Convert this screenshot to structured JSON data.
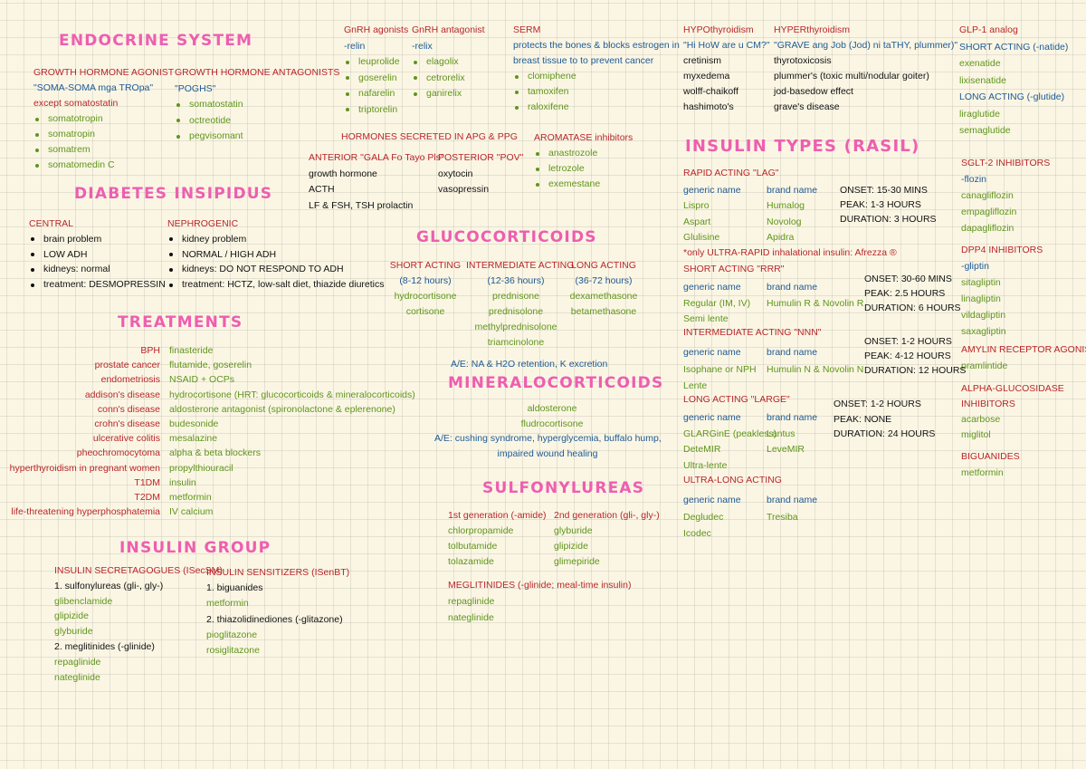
{
  "endocrine_title": "ENDOCRINE SYSTEM",
  "gh_agonist": [
    "GROWTH HORMONE AGONIST",
    "\"SOMA-SOMA mga TROpa\"",
    "except somatostatin",
    "somatotropin",
    "somatropin",
    "somatrem",
    "somatomedin C"
  ],
  "gh_antagonists": [
    "GROWTH HORMONE ANTAGONISTS",
    "\"POGHS\"",
    "somatostatin",
    "octreotide",
    "pegvisomant"
  ],
  "gnrh_agonists": [
    "GnRH agonists",
    "-relin",
    "leuprolide",
    "goserelin",
    "nafarelin",
    "triptorelin"
  ],
  "gnrh_antagonist": [
    "GnRH antagonist",
    "-relix",
    "elagolix",
    "cetrorelix",
    "ganirelix"
  ],
  "serm": [
    "SERM",
    "protects the bones & blocks estrogen in",
    "breast tissue to to prevent cancer",
    "clomiphene",
    "tamoxifen",
    "raloxifene"
  ],
  "hypothyroidism": [
    "HYPOthyroidism",
    "\"Hi HoW are u CM?\"",
    "cretinism",
    "myxedema",
    "wolff-chaikoff",
    "hashimoto's"
  ],
  "hyperthyroidism": [
    "HYPERthyroidism",
    "\"GRAVE ang Job (Jod) ni taTHY, plummer)\"",
    "thyrotoxicosis",
    "plummer's (toxic multi/nodular goiter)",
    "jod-basedow effect",
    "grave's disease"
  ],
  "glp1": [
    "GLP-1 analog",
    "SHORT ACTING (-natide)",
    "exenatide",
    "lixisenatide",
    "LONG ACTING (-glutide)",
    "liraglutide",
    "semaglutide"
  ],
  "sglt2": [
    "SGLT-2 INHIBITORS",
    "-flozin",
    "canagliflozin",
    "empagliflozin",
    "dapagliflozin"
  ],
  "dpp4": [
    "DPP4 INHIBITORS",
    "-gliptin",
    "sitagliptin",
    "linagliptin",
    "vildagliptin",
    "saxagliptin"
  ],
  "amylin": [
    "AMYLIN RECEPTOR AGONIST",
    "pramlintide"
  ],
  "alpha_glucosidase": [
    "ALPHA-GLUCOSIDASE",
    "INHIBITORS",
    "acarbose",
    "miglitol"
  ],
  "biguanides": [
    "BIGUANIDES",
    "metformin"
  ],
  "apg_ppg_title": "HORMONES SECRETED IN APG & PPG",
  "anterior": [
    "ANTERIOR \"GALA Fo Tayo Pls\"",
    "growth hormone",
    "ACTH",
    "LF & FSH, TSH prolactin"
  ],
  "posterior": [
    "POSTERIOR \"POV\"",
    "oxytocin",
    "vasopressin"
  ],
  "aromatase": [
    "AROMATASE inhibitors",
    "anastrozole",
    "letrozole",
    "exemestane"
  ],
  "diabetes_insipidus_title": "DIABETES INSIPIDUS",
  "central": [
    "CENTRAL",
    "brain problem",
    "LOW ADH",
    "kidneys: normal",
    "treatment: DESMOPRESSIN"
  ],
  "nephrogenic": [
    "NEPHROGENIC",
    "kidney problem",
    "NORMAL / HIGH ADH",
    "kidneys: DO NOT RESPOND TO ADH",
    "treatment: HCTZ, low-salt diet, thiazide diuretics"
  ],
  "treatments_title": "TREATMENTS",
  "treatment_conditions": [
    "BPH",
    "prostate cancer",
    "endometriosis",
    "addison's disease",
    "conn's disease",
    "crohn's disease",
    "ulcerative colitis",
    "pheochromocytoma",
    "hyperthyroidism in pregnant women",
    "T1DM",
    "T2DM",
    "life-threatening hyperphosphatemia"
  ],
  "treatment_drugs": [
    "finasteride",
    "flutamide, goserelin",
    "NSAID + OCPs",
    "hydrocortisone (HRT: glucocorticoids & mineralocorticoids)",
    "aldosterone antagonist (spironolactone & eplerenone)",
    "budesonide",
    "mesalazine",
    "alpha & beta blockers",
    "propylthiouracil",
    "insulin",
    "metformin",
    "IV calcium"
  ],
  "glucocorticoids_title": "GLUCOCORTICOIDS",
  "gluco_short": [
    "SHORT ACTING",
    "(8-12 hours)",
    "hydrocortisone",
    "cortisone"
  ],
  "gluco_intermediate": [
    "INTERMEDIATE ACTING",
    "(12-36 hours)",
    "prednisone",
    "prednisolone",
    "methylprednisolone",
    "triamcinolone"
  ],
  "gluco_long": [
    "LONG ACTING",
    "(36-72 hours)",
    "dexamethasone",
    "betamethasone"
  ],
  "gluco_ae": "A/E: NA & H2O retention, K excretion",
  "mineralocorticoids_title": "MINERALOCORTICOIDS",
  "mineralo_drugs": [
    "aldosterone",
    "fludrocortisone"
  ],
  "mineralo_ae": [
    "A/E: cushing syndrome, hyperglycemia, buffalo hump,",
    "impaired wound healing"
  ],
  "sulfonylureas_title": "SULFONYLUREAS",
  "sulfo_first": [
    "1st generation (-amide)",
    "chlorpropamide",
    "tolbutamide",
    "tolazamide"
  ],
  "sulfo_second": [
    "2nd generation (gli-, gly-)",
    "glyburide",
    "glipizide",
    "glimepiride"
  ],
  "meglitinides": [
    "MEGLITINIDES (-glinide; meal-time insulin)",
    "repaglinide",
    "nateglinide"
  ],
  "insulin_group_title": "INSULIN GROUP",
  "secretagogues": [
    "INSULIN SECRETAGOGUES (ISecSM)",
    "1. sulfonylureas (gli-, gly-)",
    "glibenclamide",
    "glipizide",
    "glyburide",
    "2. meglitinides (-glinide)",
    "repaglinide",
    "nateglinide"
  ],
  "sensitizers": [
    "INSULIN SENSITIZERS (ISenBT)",
    "1. biguanides",
    "metformin",
    "2. thiazolidinediones (-glitazone)",
    "pioglitazone",
    "rosiglitazone"
  ],
  "insulin_types_title": "INSULIN TYPES (RASIL)",
  "rapid": {
    "title": "RAPID ACTING \"LAG\"",
    "generic": [
      "generic name",
      "Lispro",
      "Aspart",
      "Glulisine"
    ],
    "brand": [
      "brand name",
      "Humalog",
      "Novolog",
      "Apidra"
    ],
    "timing": [
      "ONSET: 15-30 MINS",
      "PEAK: 1-3 HOURS",
      "DURATION: 3 HOURS"
    ]
  },
  "inhaled_note": "*only ULTRA-RAPID inhalational insulin: Afrezza ®",
  "short": {
    "title": "SHORT ACTING \"RRR\"",
    "generic": [
      "generic name",
      "Regular (IM, IV)",
      "Semi lente"
    ],
    "brand": [
      "brand name",
      "Humulin R & Novolin R"
    ],
    "timing": [
      "ONSET: 30-60 MINS",
      "PEAK: 2.5 HOURS",
      "DURATION: 6 HOURS"
    ]
  },
  "intermediate": {
    "title": "INTERMEDIATE ACTING \"NNN\"",
    "generic": [
      "generic name",
      "Isophane or NPH",
      "Lente"
    ],
    "brand": [
      "brand name",
      "Humulin N & Novolin N"
    ],
    "timing": [
      "ONSET: 1-2 HOURS",
      "PEAK: 4-12 HOURS",
      "DURATION: 12 HOURS"
    ]
  },
  "long": {
    "title": "LONG ACTING \"LARGE\"",
    "generic": [
      "generic name",
      "GLARGinE (peakless)",
      "DeteMIR",
      "Ultra-lente"
    ],
    "brand": [
      "brand name",
      "Lantus",
      "LeveMIR"
    ],
    "timing": [
      "ONSET: 1-2 HOURS",
      "PEAK: NONE",
      "DURATION: 24 HOURS"
    ]
  },
  "ultra_long": {
    "title": "ULTRA-LONG ACTING",
    "generic": [
      "generic name",
      "Degludec",
      "Icodec"
    ],
    "brand": [
      "brand name",
      "Tresiba"
    ]
  }
}
